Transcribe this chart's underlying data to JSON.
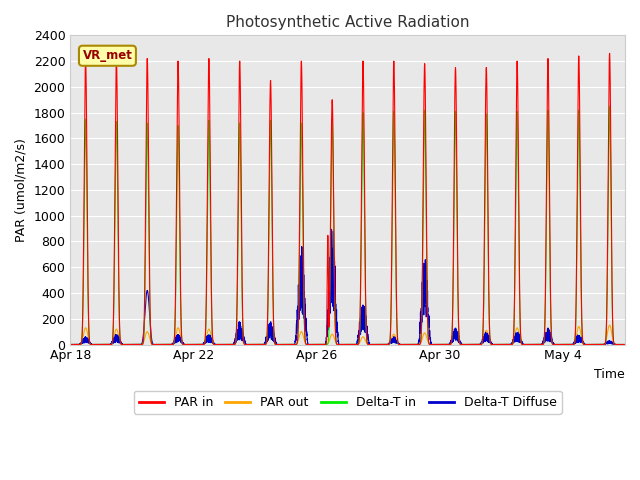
{
  "title": "Photosynthetic Active Radiation",
  "xlabel": "Time",
  "ylabel": "PAR (umol/m2/s)",
  "ylim": [
    0,
    2400
  ],
  "yticks": [
    0,
    200,
    400,
    600,
    800,
    1000,
    1200,
    1400,
    1600,
    1800,
    2000,
    2200,
    2400
  ],
  "xtick_positions": [
    0,
    4,
    8,
    12,
    16
  ],
  "xtick_labels": [
    "Apr 18",
    "Apr 22",
    "Apr 26",
    "Apr 30",
    "May 4"
  ],
  "n_days": 18,
  "n_per_day": 288,
  "legend_labels": [
    "PAR in",
    "PAR out",
    "Delta-T in",
    "Delta-T Diffuse"
  ],
  "legend_colors": [
    "#ff0000",
    "#ffa500",
    "#00ee00",
    "#0000cc"
  ],
  "station_label": "VR_met",
  "station_label_fg": "#990000",
  "station_label_bg": "#ffffaa",
  "station_label_edge": "#aa8800",
  "fig_bg": "#ffffff",
  "plot_bg": "#e8e8e8",
  "grid_color": "#ffffff",
  "title_fontsize": 11,
  "axis_label_fontsize": 9,
  "tick_fontsize": 9,
  "legend_fontsize": 9
}
